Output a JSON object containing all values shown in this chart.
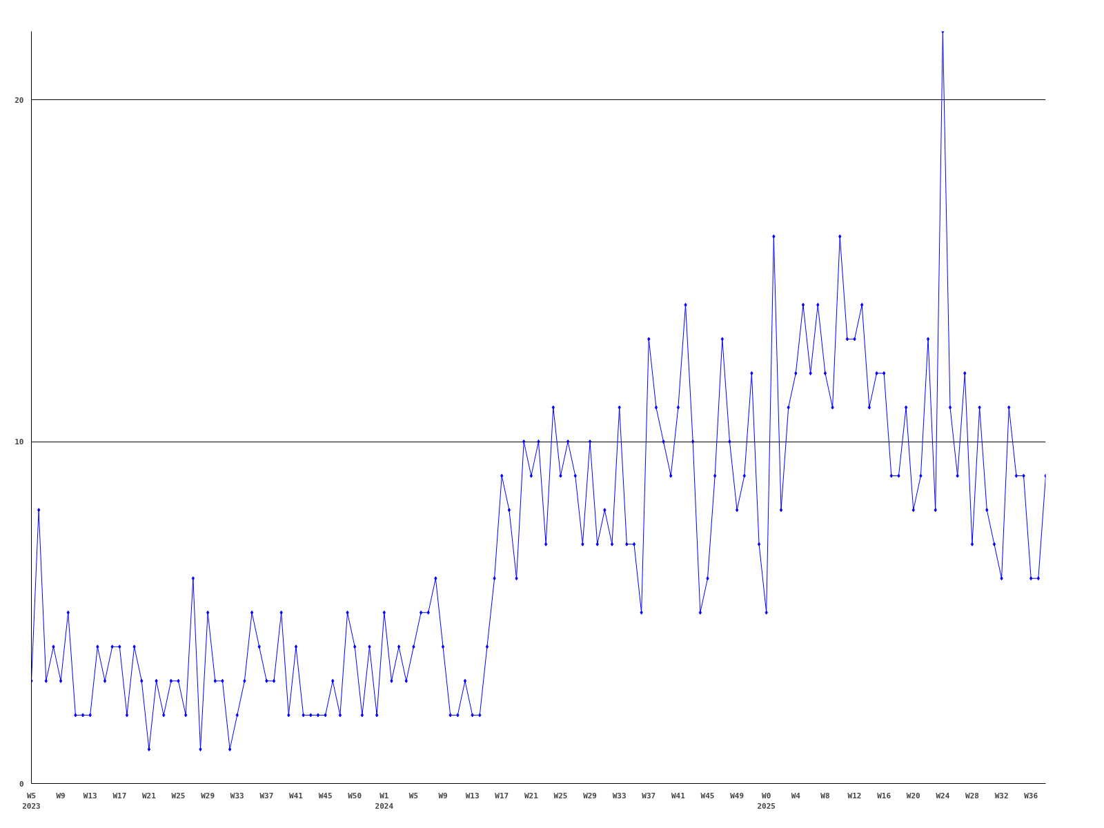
{
  "chart_data": {
    "type": "line",
    "marker": "diamond",
    "grid": "y",
    "categories": [
      "W5\n2023",
      null,
      null,
      null,
      "W9",
      null,
      null,
      null,
      "W13",
      null,
      null,
      null,
      "W17",
      null,
      null,
      null,
      "W21",
      null,
      null,
      null,
      "W25",
      null,
      null,
      null,
      "W29",
      null,
      null,
      null,
      "W33",
      null,
      null,
      null,
      "W37",
      null,
      null,
      null,
      "W41",
      null,
      null,
      null,
      "W45",
      null,
      null,
      null,
      "W50",
      null,
      null,
      null,
      "W1\n2024",
      null,
      null,
      null,
      "W5",
      null,
      null,
      null,
      "W9",
      null,
      null,
      null,
      "W13",
      null,
      null,
      null,
      "W17",
      null,
      null,
      null,
      "W21",
      null,
      null,
      null,
      "W25",
      null,
      null,
      null,
      "W29",
      null,
      null,
      null,
      "W33",
      null,
      null,
      null,
      "W37",
      null,
      null,
      null,
      "W41",
      null,
      null,
      null,
      "W45",
      null,
      null,
      null,
      "W49",
      null,
      null,
      null,
      "W0\n2025",
      null,
      null,
      null,
      "W4",
      null,
      null,
      null,
      "W8",
      null,
      null,
      null,
      "W12",
      null,
      null,
      null,
      "W16",
      null,
      null,
      null,
      "W20",
      null,
      null,
      null,
      "W24",
      null,
      null,
      null,
      "W28",
      null,
      null,
      null,
      "W32",
      null,
      null,
      null,
      "W36",
      null,
      null
    ],
    "series": [
      {
        "color": "#0000ff",
        "values": [
          3,
          8,
          3,
          4,
          3,
          5,
          2,
          2,
          2,
          4,
          3,
          4,
          4,
          2,
          4,
          3,
          1,
          3,
          2,
          3,
          3,
          2,
          6,
          1,
          5,
          3,
          3,
          1,
          2,
          3,
          5,
          4,
          3,
          3,
          5,
          2,
          4,
          2,
          2,
          2,
          2,
          3,
          2,
          5,
          4,
          2,
          4,
          2,
          5,
          3,
          4,
          3,
          4,
          5,
          5,
          6,
          4,
          2,
          2,
          3,
          2,
          2,
          4,
          6,
          9,
          8,
          6,
          10,
          9,
          10,
          7,
          11,
          9,
          10,
          9,
          7,
          10,
          7,
          8,
          7,
          11,
          7,
          7,
          5,
          13,
          11,
          10,
          9,
          11,
          14,
          10,
          5,
          6,
          9,
          13,
          10,
          8,
          9,
          12,
          7,
          5,
          16,
          8,
          11,
          12,
          14,
          12,
          14,
          12,
          11,
          16,
          13,
          13,
          14,
          11,
          12,
          12,
          9,
          9,
          11,
          8,
          9,
          13,
          8,
          22,
          11,
          9,
          12,
          7,
          11,
          8,
          7,
          6,
          11,
          9,
          9,
          6,
          6,
          9
        ]
      }
    ],
    "ylim": [
      0,
      22
    ],
    "yticks": [
      0,
      10,
      20
    ]
  }
}
